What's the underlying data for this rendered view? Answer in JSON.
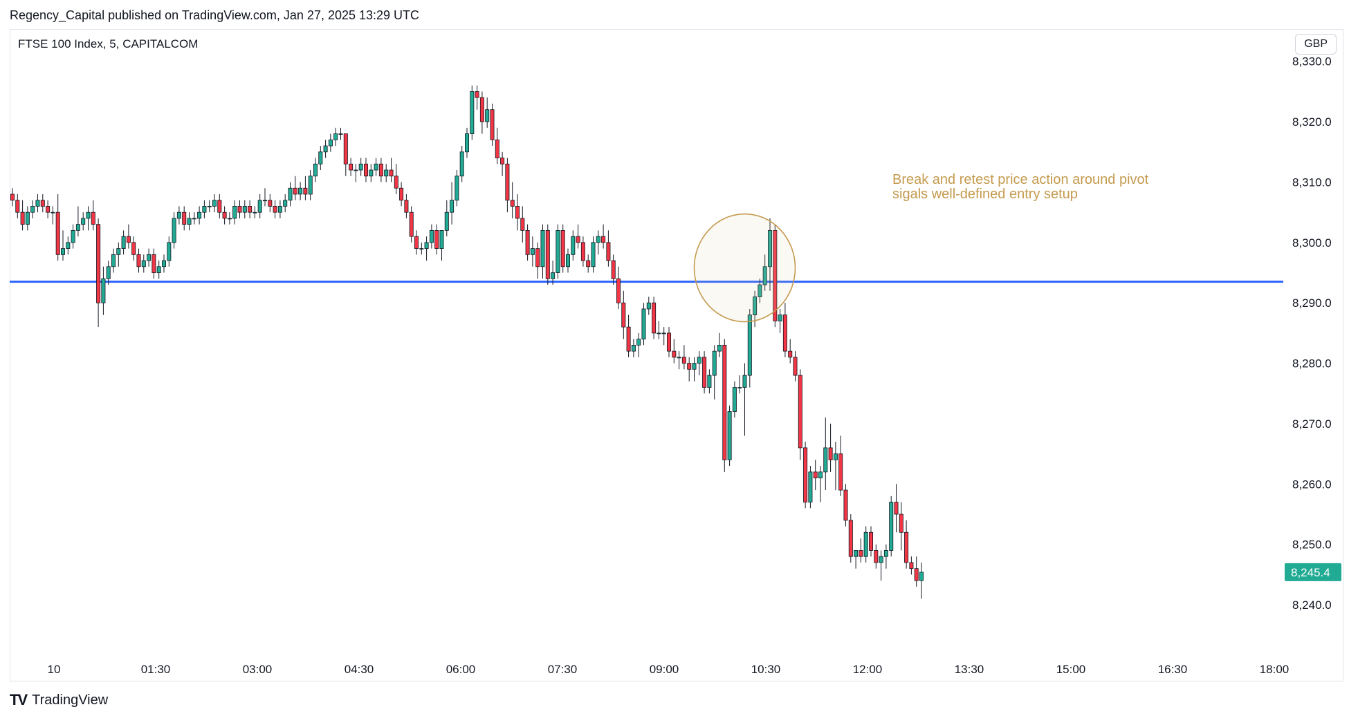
{
  "header": {
    "published": "Regency_Capital published on TradingView.com, Jan 27, 2025 13:29 UTC"
  },
  "symbol": "FTSE 100 Index, 5, CAPITALCOM",
  "currency": "GBP",
  "footer": {
    "logo_icon": "tradingview-logo-icon",
    "brand": "TradingView"
  },
  "chart_data": {
    "type": "candlestick",
    "title": "FTSE 100 Index, 5, CAPITALCOM",
    "y_axis": {
      "range": [
        8232,
        8331
      ],
      "ticks": [
        8240,
        8250,
        8260,
        8270,
        8280,
        8290,
        8300,
        8310,
        8320,
        8330
      ],
      "tick_labels": [
        "8,240.0",
        "8,250.0",
        "8,260.0",
        "8,270.0",
        "8,280.0",
        "8,290.0",
        "8,300.0",
        "8,310.0",
        "8,320.0",
        "8,330.0"
      ]
    },
    "x_axis": {
      "tick_labels": [
        "10",
        "01:30",
        "03:00",
        "04:30",
        "06:00",
        "07:30",
        "09:00",
        "10:30",
        "12:00",
        "13:30",
        "15:00",
        "16:30",
        "18:00"
      ]
    },
    "last_price": {
      "value": 8245.4,
      "label": "8,245.4",
      "color": "#22ab94"
    },
    "horizontal_line": {
      "value": 8293.5,
      "color": "#2962ff"
    },
    "annotation": {
      "lines": [
        "Break and retest price action around pivot",
        "sigals well-defined entry setup"
      ],
      "color": "#c49a4e",
      "circle_center": {
        "bar": 145,
        "price": 8295.8
      }
    },
    "colors": {
      "up": "#22ab94",
      "down": "#f23645"
    },
    "candles": [
      [
        8308,
        8309,
        8306,
        8307
      ],
      [
        8307,
        8308,
        8304,
        8305
      ],
      [
        8305,
        8307,
        8302,
        8303
      ],
      [
        8303,
        8306,
        8302,
        8305
      ],
      [
        8305,
        8307,
        8304,
        8306
      ],
      [
        8306,
        8308,
        8305,
        8307
      ],
      [
        8307,
        8308,
        8305,
        8306
      ],
      [
        8306,
        8307,
        8304,
        8305
      ],
      [
        8305,
        8306,
        8303,
        8305
      ],
      [
        8305,
        8308,
        8297,
        8298
      ],
      [
        8298,
        8302,
        8297,
        8299
      ],
      [
        8299,
        8301,
        8298,
        8300
      ],
      [
        8300,
        8303,
        8299,
        8302
      ],
      [
        8302,
        8306,
        8301,
        8303
      ],
      [
        8303,
        8305,
        8302,
        8304
      ],
      [
        8304,
        8306,
        8302,
        8305
      ],
      [
        8305,
        8307,
        8302,
        8303
      ],
      [
        8303,
        8304,
        8286,
        8290
      ],
      [
        8290,
        8296,
        8288,
        8294
      ],
      [
        8294,
        8297,
        8293,
        8296
      ],
      [
        8296,
        8299,
        8295,
        8298
      ],
      [
        8298,
        8300,
        8296,
        8299
      ],
      [
        8299,
        8302,
        8298,
        8301
      ],
      [
        8301,
        8303,
        8299,
        8300
      ],
      [
        8300,
        8301,
        8297,
        8298
      ],
      [
        8298,
        8299,
        8295,
        8296
      ],
      [
        8296,
        8298,
        8295,
        8297
      ],
      [
        8297,
        8299,
        8296,
        8298
      ],
      [
        8298,
        8299,
        8294,
        8295
      ],
      [
        8295,
        8297,
        8294,
        8296
      ],
      [
        8296,
        8298,
        8295,
        8297
      ],
      [
        8297,
        8301,
        8296,
        8300
      ],
      [
        8300,
        8305,
        8299,
        8304
      ],
      [
        8304,
        8306,
        8303,
        8305
      ],
      [
        8305,
        8306,
        8302,
        8303
      ],
      [
        8303,
        8305,
        8302,
        8304
      ],
      [
        8304,
        8305,
        8303,
        8304
      ],
      [
        8304,
        8306,
        8303,
        8305
      ],
      [
        8305,
        8307,
        8304,
        8306
      ],
      [
        8306,
        8307,
        8305,
        8306
      ],
      [
        8306,
        8308,
        8305,
        8307
      ],
      [
        8307,
        8308,
        8304,
        8305
      ],
      [
        8305,
        8306,
        8303,
        8304
      ],
      [
        8304,
        8305,
        8303,
        8304
      ],
      [
        8304,
        8307,
        8303,
        8306
      ],
      [
        8306,
        8307,
        8304,
        8305
      ],
      [
        8305,
        8307,
        8304,
        8306
      ],
      [
        8306,
        8307,
        8304,
        8305
      ],
      [
        8305,
        8306,
        8304,
        8305
      ],
      [
        8305,
        8308,
        8304,
        8307
      ],
      [
        8307,
        8309,
        8306,
        8307
      ],
      [
        8307,
        8308,
        8305,
        8306
      ],
      [
        8306,
        8307,
        8304,
        8305
      ],
      [
        8305,
        8307,
        8304,
        8306
      ],
      [
        8306,
        8308,
        8305,
        8307
      ],
      [
        8307,
        8310,
        8306,
        8309
      ],
      [
        8309,
        8311,
        8307,
        8308
      ],
      [
        8308,
        8310,
        8307,
        8309
      ],
      [
        8309,
        8311,
        8307,
        8308
      ],
      [
        8308,
        8312,
        8307,
        8311
      ],
      [
        8311,
        8314,
        8310,
        8313
      ],
      [
        8313,
        8316,
        8312,
        8315
      ],
      [
        8315,
        8317,
        8314,
        8316
      ],
      [
        8316,
        8318,
        8315,
        8317
      ],
      [
        8317,
        8319,
        8316,
        8318
      ],
      [
        8318,
        8319,
        8317,
        8318
      ],
      [
        8318,
        8318,
        8311,
        8313
      ],
      [
        8313,
        8314,
        8311,
        8312
      ],
      [
        8312,
        8313,
        8310,
        8312
      ],
      [
        8312,
        8314,
        8311,
        8313
      ],
      [
        8313,
        8314,
        8310,
        8311
      ],
      [
        8311,
        8313,
        8310,
        8312
      ],
      [
        8312,
        8314,
        8311,
        8313
      ],
      [
        8313,
        8314,
        8310,
        8311
      ],
      [
        8311,
        8313,
        8310,
        8312
      ],
      [
        8312,
        8314,
        8310,
        8311
      ],
      [
        8311,
        8313,
        8308,
        8309
      ],
      [
        8309,
        8310,
        8306,
        8307
      ],
      [
        8307,
        8308,
        8304,
        8305
      ],
      [
        8305,
        8306,
        8300,
        8301
      ],
      [
        8301,
        8302,
        8298,
        8299
      ],
      [
        8299,
        8300,
        8298,
        8299
      ],
      [
        8299,
        8301,
        8297,
        8300
      ],
      [
        8300,
        8303,
        8299,
        8302
      ],
      [
        8302,
        8303,
        8298,
        8299
      ],
      [
        8299,
        8302,
        8297,
        8302
      ],
      [
        8302,
        8307,
        8301,
        8305
      ],
      [
        8305,
        8310,
        8303,
        8307
      ],
      [
        8307,
        8312,
        8306,
        8311
      ],
      [
        8311,
        8316,
        8310,
        8315
      ],
      [
        8315,
        8319,
        8314,
        8318
      ],
      [
        8318,
        8326,
        8317,
        8325
      ],
      [
        8325,
        8326,
        8322,
        8324
      ],
      [
        8324,
        8325,
        8318,
        8320
      ],
      [
        8320,
        8324,
        8319,
        8322
      ],
      [
        8322,
        8323,
        8316,
        8317
      ],
      [
        8317,
        8319,
        8313,
        8314
      ],
      [
        8314,
        8315,
        8311,
        8313
      ],
      [
        8313,
        8314,
        8305,
        8307
      ],
      [
        8307,
        8310,
        8304,
        8306
      ],
      [
        8306,
        8308,
        8302,
        8304
      ],
      [
        8304,
        8306,
        8300,
        8302
      ],
      [
        8302,
        8303,
        8297,
        8298
      ],
      [
        8298,
        8301,
        8296,
        8299
      ],
      [
        8299,
        8300,
        8294,
        8296
      ],
      [
        8296,
        8303,
        8294,
        8302
      ],
      [
        8302,
        8303,
        8293,
        8294
      ],
      [
        8294,
        8297,
        8293,
        8295
      ],
      [
        8295,
        8303,
        8294,
        8302
      ],
      [
        8302,
        8303,
        8295,
        8296
      ],
      [
        8296,
        8299,
        8295,
        8298
      ],
      [
        8298,
        8302,
        8297,
        8301
      ],
      [
        8301,
        8303,
        8299,
        8300
      ],
      [
        8300,
        8301,
        8296,
        8297
      ],
      [
        8297,
        8298,
        8295,
        8296
      ],
      [
        8296,
        8301,
        8295,
        8300
      ],
      [
        8300,
        8302,
        8298,
        8301
      ],
      [
        8301,
        8303,
        8299,
        8300
      ],
      [
        8300,
        8302,
        8296,
        8297
      ],
      [
        8297,
        8298,
        8293,
        8294
      ],
      [
        8294,
        8296,
        8289,
        8290
      ],
      [
        8290,
        8292,
        8284,
        8286
      ],
      [
        8286,
        8288,
        8281,
        8282
      ],
      [
        8282,
        8284,
        8281,
        8283
      ],
      [
        8283,
        8285,
        8281,
        8284
      ],
      [
        8284,
        8290,
        8283,
        8289
      ],
      [
        8289,
        8291,
        8288,
        8290
      ],
      [
        8290,
        8291,
        8284,
        8285
      ],
      [
        8285,
        8287,
        8284,
        8285
      ],
      [
        8285,
        8286,
        8283,
        8285
      ],
      [
        8285,
        8286,
        8281,
        8282
      ],
      [
        8282,
        8284,
        8280,
        8281
      ],
      [
        8281,
        8282,
        8279,
        8281
      ],
      [
        8281,
        8283,
        8279,
        8280
      ],
      [
        8280,
        8281,
        8277,
        8279
      ],
      [
        8279,
        8281,
        8277,
        8280
      ],
      [
        8280,
        8282,
        8278,
        8281
      ],
      [
        8281,
        8282,
        8275,
        8276
      ],
      [
        8276,
        8279,
        8275,
        8278
      ],
      [
        8278,
        8283,
        8274,
        8282
      ],
      [
        8282,
        8285,
        8281,
        8283
      ],
      [
        8283,
        8284,
        8262,
        8264
      ],
      [
        8264,
        8273,
        8263,
        8272
      ],
      [
        8272,
        8277,
        8271,
        8276
      ],
      [
        8276,
        8278,
        8275,
        8276
      ],
      [
        8276,
        8280,
        8268,
        8278
      ],
      [
        8278,
        8289,
        8276,
        8288
      ],
      [
        8288,
        8292,
        8286,
        8291
      ],
      [
        8291,
        8294,
        8290,
        8293
      ],
      [
        8293,
        8298,
        8292,
        8296
      ],
      [
        8296,
        8304,
        8292,
        8302
      ],
      [
        8302,
        8303,
        8286,
        8287
      ],
      [
        8287,
        8289,
        8285,
        8288
      ],
      [
        8288,
        8290,
        8281,
        8282
      ],
      [
        8282,
        8284,
        8280,
        8281
      ],
      [
        8281,
        8282,
        8277,
        8278
      ],
      [
        8278,
        8279,
        8264,
        8266
      ],
      [
        8266,
        8267,
        8256,
        8257
      ],
      [
        8257,
        8263,
        8256,
        8262
      ],
      [
        8262,
        8264,
        8259,
        8261
      ],
      [
        8261,
        8263,
        8257,
        8262
      ],
      [
        8262,
        8271,
        8259,
        8266
      ],
      [
        8266,
        8270,
        8262,
        8264
      ],
      [
        8264,
        8267,
        8259,
        8265
      ],
      [
        8265,
        8268,
        8258,
        8259
      ],
      [
        8259,
        8260,
        8253,
        8254
      ],
      [
        8254,
        8255,
        8247,
        8248
      ],
      [
        8248,
        8249,
        8246,
        8249
      ],
      [
        8249,
        8251,
        8247,
        8248
      ],
      [
        8248,
        8253,
        8247,
        8252
      ],
      [
        8252,
        8253,
        8248,
        8249
      ],
      [
        8249,
        8250,
        8246,
        8247
      ],
      [
        8247,
        8249,
        8244,
        8248
      ],
      [
        8248,
        8250,
        8246,
        8249
      ],
      [
        8249,
        8258,
        8248,
        8257
      ],
      [
        8257,
        8260,
        8252,
        8255
      ],
      [
        8255,
        8257,
        8249,
        8252
      ],
      [
        8252,
        8254,
        8246,
        8247
      ],
      [
        8247,
        8248,
        8245,
        8246
      ],
      [
        8246,
        8248,
        8243,
        8244
      ],
      [
        8244,
        8247,
        8241,
        8245.4
      ]
    ]
  }
}
